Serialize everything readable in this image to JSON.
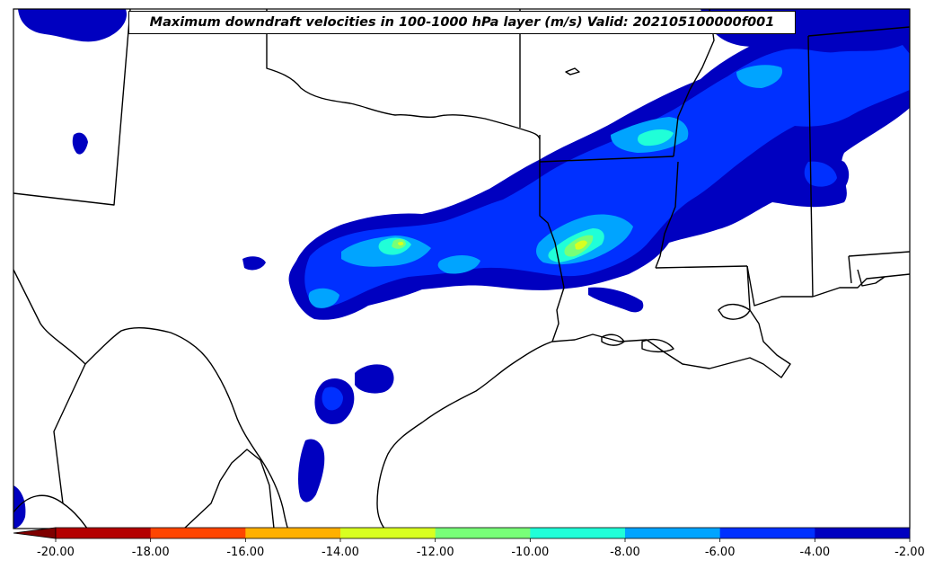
{
  "title": "Maximum downdraft velocities in 100-1000 hPa layer (m/s) Valid: 202105100000f001",
  "colorbar": {
    "ticks": [
      "-20.00",
      "-18.00",
      "-16.00",
      "-14.00",
      "-12.00",
      "-10.00",
      "-8.00",
      "-6.00",
      "-4.00",
      "-2.00"
    ],
    "colors": [
      "#b40000",
      "#ff4500",
      "#ffb000",
      "#d8ff20",
      "#78ff78",
      "#20ffd8",
      "#00a4ff",
      "#0030ff",
      "#0000c0"
    ],
    "extend_color": "#7f0000"
  },
  "chart_data": {
    "type": "heatmap",
    "field": "maximum downdraft velocity",
    "units": "m/s",
    "layer": "100-1000 hPa",
    "valid": "202105100000f001",
    "levels": [
      -20,
      -18,
      -16,
      -14,
      -12,
      -10,
      -8,
      -6,
      -4,
      -2
    ],
    "colormap": "jet (reversed, extend min)"
  }
}
